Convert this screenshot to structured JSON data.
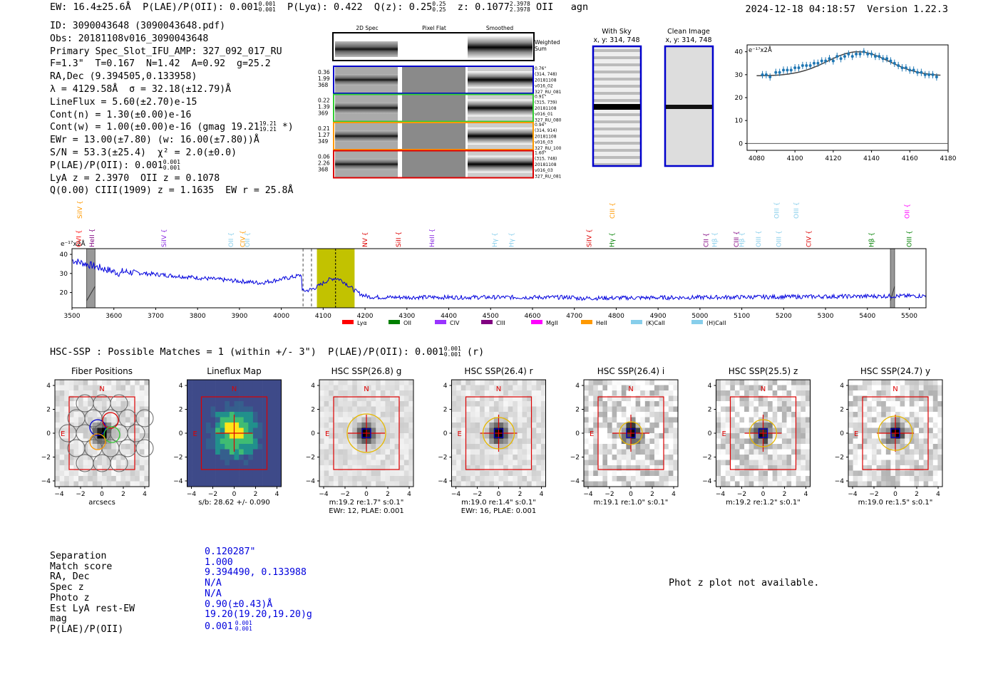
{
  "header": {
    "ew": "EW: 16.4±25.6Å",
    "plae_label": "P(LAE)/P(OII): 0.001",
    "plae_sup": "0.001",
    "plae_sub": "0.001",
    "plya": "P(Lyα): 0.422",
    "qz_label": "Q(z): 0.25",
    "qz_sup": "0.25",
    "qz_sub": "0.25",
    "z_label": "z: 0.1077",
    "z_sup": "2.3978",
    "z_sub": "2.3978",
    "z_line": "OII",
    "agn": "agn",
    "timestamp": "2024-12-18 04:18:57",
    "version": "Version 1.22.3"
  },
  "info": {
    "id": "ID: 3090043648 (3090043648.pdf)",
    "obs": "Obs: 20181108v016_3090043648",
    "primary": "Primary Spec_Slot_IFU_AMP: 327_092_017_RU",
    "params": "F=1.3\"  T=0.167  N=1.42  A=0.92  g=25.2",
    "radec": "RA,Dec (9.394505,0.133958)",
    "lambda": "λ = 4129.58Å  σ = 32.18(±12.79)Å",
    "lineflux": "LineFlux = 5.60(±2.70)e-15",
    "contn": "Cont(n) = 1.30(±0.00)e-16",
    "contw_label": "Cont(w) = 1.00(±0.00)e-16 (gmag 19.21",
    "contw_sup": "19.21",
    "contw_sub": "19.21",
    "contw_end": "*)",
    "ewr": "EWr = 13.00(±7.80) (w: 16.00(±7.80))Å",
    "sn": "S/N = 53.3(±25.4)  χ² = 2.0(±0.0)",
    "plae_label": "P(LAE)/P(OII): 0.001",
    "plae_sup": "0.001",
    "plae_sub": "0.001",
    "lyaz": "LyA z = 2.3970  OII z = 0.1078",
    "ciii": "Q(0.00) CIII(1909) z = 1.1635  EW r = 25.8Å"
  },
  "cutouts": {
    "headers": [
      "2D Spec",
      "Pixel Flat",
      "Smoothed"
    ],
    "weighted_sum": [
      "Weighted",
      "Sum"
    ],
    "rows": [
      {
        "left": [
          "0.36",
          "1.99",
          "368"
        ],
        "right": [
          "0.76\"",
          "(314, 748)",
          "20181108",
          "v016_02",
          "327_RU_081"
        ],
        "color": "#0000cc"
      },
      {
        "left": [
          "0.22",
          "1.39",
          "369"
        ],
        "right": [
          "0.91\"",
          "(315, 739)",
          "20181108",
          "v016_01",
          "327_RU_080"
        ],
        "color": "#33cc33"
      },
      {
        "left": [
          "0.21",
          "1.27",
          "349"
        ],
        "right": [
          "0.94\"",
          "(314, 914)",
          "20181108",
          "v016_03",
          "327_RU_100"
        ],
        "color": "#ff9900"
      },
      {
        "left": [
          "0.06",
          "2.26",
          "368"
        ],
        "right": [
          "1.60\"",
          "(315, 748)",
          "20181108",
          "v016_03",
          "327_RU_081"
        ],
        "color": "#dd0000"
      }
    ],
    "with_sky": [
      "With Sky",
      "x, y: 314, 748"
    ],
    "clean": [
      "Clean Image",
      "x, y: 314, 748"
    ]
  },
  "zoom_chart": {
    "type": "scatter",
    "ylabel": "e⁻¹⁷x2Å",
    "xlim": [
      4075,
      4180
    ],
    "ylim": [
      -3,
      43
    ],
    "xticks": [
      4080,
      4100,
      4120,
      4140,
      4160,
      4180
    ],
    "yticks": [
      0,
      10,
      20,
      30,
      40
    ],
    "x": [
      4083,
      4085,
      4087,
      4090,
      4092,
      4094,
      4096,
      4098,
      4100,
      4102,
      4104,
      4106,
      4108,
      4110,
      4112,
      4114,
      4116,
      4118,
      4120,
      4122,
      4124,
      4126,
      4128,
      4130,
      4132,
      4134,
      4136,
      4138,
      4140,
      4142,
      4144,
      4146,
      4148,
      4150,
      4152,
      4154,
      4156,
      4158,
      4160,
      4162,
      4164,
      4166,
      4168,
      4170,
      4172,
      4174
    ],
    "y": [
      30,
      30,
      29,
      31,
      31,
      32,
      32,
      32,
      33,
      33,
      34,
      34,
      34,
      35,
      35,
      36,
      36,
      37,
      36,
      38,
      37,
      38,
      39,
      38,
      39,
      39,
      40,
      39,
      39,
      38,
      38,
      37,
      37,
      36,
      35,
      34,
      33,
      33,
      32,
      32,
      31,
      31,
      30,
      30,
      30,
      29
    ],
    "err": 1.6,
    "fit_center": 4133,
    "fit_amp": 10.5,
    "fit_sigma": 32,
    "fit_base": 29.5
  },
  "spectrum": {
    "type": "line",
    "ylabel": "e⁻¹⁷x2Å",
    "xlim": [
      3500,
      5540
    ],
    "ylim": [
      12,
      43
    ],
    "xticks": [
      3500,
      3600,
      3700,
      3800,
      3900,
      4000,
      4100,
      4200,
      4300,
      4400,
      4500,
      4600,
      4700,
      4800,
      4900,
      5000,
      5100,
      5200,
      5300,
      5400,
      5500
    ],
    "yticks": [
      20,
      30,
      40
    ],
    "highlight": [
      4085,
      4175
    ],
    "line_center": 4129.58,
    "dashed": [
      4052,
      4072
    ],
    "masked": [
      [
        3535,
        3555
      ],
      [
        5455,
        5465
      ]
    ],
    "lines_upper": [
      {
        "name": "OVI",
        "x": 3516,
        "color": "#ff0000"
      },
      {
        "name": "HeII",
        "x": 3548,
        "color": "#800080"
      },
      {
        "name": "SiIV",
        "x": 3720,
        "color": "#8a2be2"
      },
      {
        "name": "OII",
        "x": 3880,
        "color": "#87ceeb"
      },
      {
        "name": "CIV",
        "x": 3908,
        "color": "#ff9900"
      },
      {
        "name": "OII",
        "x": 3919,
        "color": "#87ceeb"
      },
      {
        "name": "NV",
        "x": 4200,
        "color": "#dd0000"
      },
      {
        "name": "SiII",
        "x": 4280,
        "color": "#dd0000"
      },
      {
        "name": "HeII",
        "x": 4360,
        "color": "#8a2be2"
      },
      {
        "name": "Hγ",
        "x": 4510,
        "color": "#87ceeb"
      },
      {
        "name": "Hγ",
        "x": 4550,
        "color": "#87ceeb"
      },
      {
        "name": "SiIV",
        "x": 4735,
        "color": "#dd0000"
      },
      {
        "name": "Hγ",
        "x": 4790,
        "color": "#008000"
      },
      {
        "name": "CII",
        "x": 5015,
        "color": "#800080"
      },
      {
        "name": "Hβ",
        "x": 5035,
        "color": "#87ceeb"
      },
      {
        "name": "CIII",
        "x": 5087,
        "color": "#800080"
      },
      {
        "name": "Hβ",
        "x": 5100,
        "color": "#87ceeb"
      },
      {
        "name": "OIII",
        "x": 5140,
        "color": "#87ceeb"
      },
      {
        "name": "OIII",
        "x": 5188,
        "color": "#87ceeb"
      },
      {
        "name": "CIV",
        "x": 5260,
        "color": "#dd0000"
      },
      {
        "name": "Hβ",
        "x": 5410,
        "color": "#008000"
      },
      {
        "name": "OIII",
        "x": 5500,
        "color": "#008000"
      }
    ],
    "lines_lower": [
      {
        "name": "SiIV",
        "x": 3519,
        "color": "#ff9900"
      },
      {
        "name": "CIII",
        "x": 4791,
        "color": "#ff9900"
      },
      {
        "name": "OIII",
        "x": 5183,
        "color": "#87ceeb"
      },
      {
        "name": "OIII",
        "x": 5230,
        "color": "#87ceeb"
      },
      {
        "name": "OII",
        "x": 5495,
        "color": "#ff00ff"
      }
    ],
    "legend": [
      {
        "name": "Lyα",
        "color": "#ff0000"
      },
      {
        "name": "OII",
        "color": "#008000"
      },
      {
        "name": "CIV",
        "color": "#9933ff"
      },
      {
        "name": "CIII",
        "color": "#800080"
      },
      {
        "name": "MgII",
        "color": "#ff00ff"
      },
      {
        "name": "HeII",
        "color": "#ff9900"
      },
      {
        "name": "(K)CaII",
        "color": "#87ceeb"
      },
      {
        "name": "(H)CaII",
        "color": "#87ceeb"
      }
    ]
  },
  "hsc_line": {
    "label": "HSC-SSP : Possible Matches = 1 (within +/- 3\")  P(LAE)/P(OII): 0.001",
    "sup": "0.001",
    "sub": "0.001",
    "band": "(r)"
  },
  "image_panels": [
    {
      "title": "Fiber Positions",
      "north": "N",
      "east": "E",
      "caption": [
        "arcsecs"
      ],
      "kind": "fibers"
    },
    {
      "title": "Lineflux Map",
      "north": "N",
      "east": "E",
      "caption": [
        "s/b: 28.62 +/- 0.090"
      ],
      "kind": "lineflux"
    },
    {
      "title": "HSC SSP(26.8) g",
      "north": "N",
      "east": "E",
      "caption": [
        "m:19.2  re:1.7\"  s:0.1\"",
        "EWr: 12, PLAE: 0.001"
      ],
      "kind": "hsc",
      "noise": 0.15,
      "ring_r": 27
    },
    {
      "title": "HSC SSP(26.4) r",
      "north": "N",
      "east": "E",
      "caption": [
        "m:19.0  re:1.4\"  s:0.1\"",
        "EWr: 16, PLAE: 0.001"
      ],
      "kind": "hsc",
      "noise": 0.18,
      "ring_r": 22
    },
    {
      "title": "HSC SSP(26.4) i",
      "north": "N",
      "east": "E",
      "caption": [
        "m:19.1  re:1.0\"  s:0.1\""
      ],
      "kind": "hsc",
      "noise": 0.45,
      "ring_r": 16
    },
    {
      "title": "HSC SSP(25.5) z",
      "north": "N",
      "east": "E",
      "caption": [
        "m:19.2  re:1.2\"  s:0.1\""
      ],
      "kind": "hsc",
      "noise": 0.4,
      "ring_r": 19
    },
    {
      "title": "HSC SSP(24.7) y",
      "north": "N",
      "east": "E",
      "caption": [
        "m:19.0  re:1.5\"  s:0.1\""
      ],
      "kind": "hsc",
      "noise": 0.38,
      "ring_r": 24
    }
  ],
  "image_axes": {
    "xticks": [
      "−4",
      "−2",
      "0",
      "2",
      "4"
    ],
    "yticks": [
      "4",
      "2",
      "0",
      "−2",
      "−4"
    ]
  },
  "match": {
    "labels": [
      "Separation",
      "Match score",
      "RA, Dec",
      "Spec z",
      "Photo z",
      "Est LyA rest-EW",
      "mag",
      "P(LAE)/P(OII)"
    ],
    "values": [
      "0.120287\"",
      "1.000",
      "9.394490, 0.133988",
      "N/A",
      "N/A",
      "0.90(±0.43)Å",
      "19.20(19.20,19.20)g",
      "0.001"
    ],
    "plae_sup": "0.001",
    "plae_sub": "0.001"
  },
  "photz_msg": "Phot z plot not available."
}
